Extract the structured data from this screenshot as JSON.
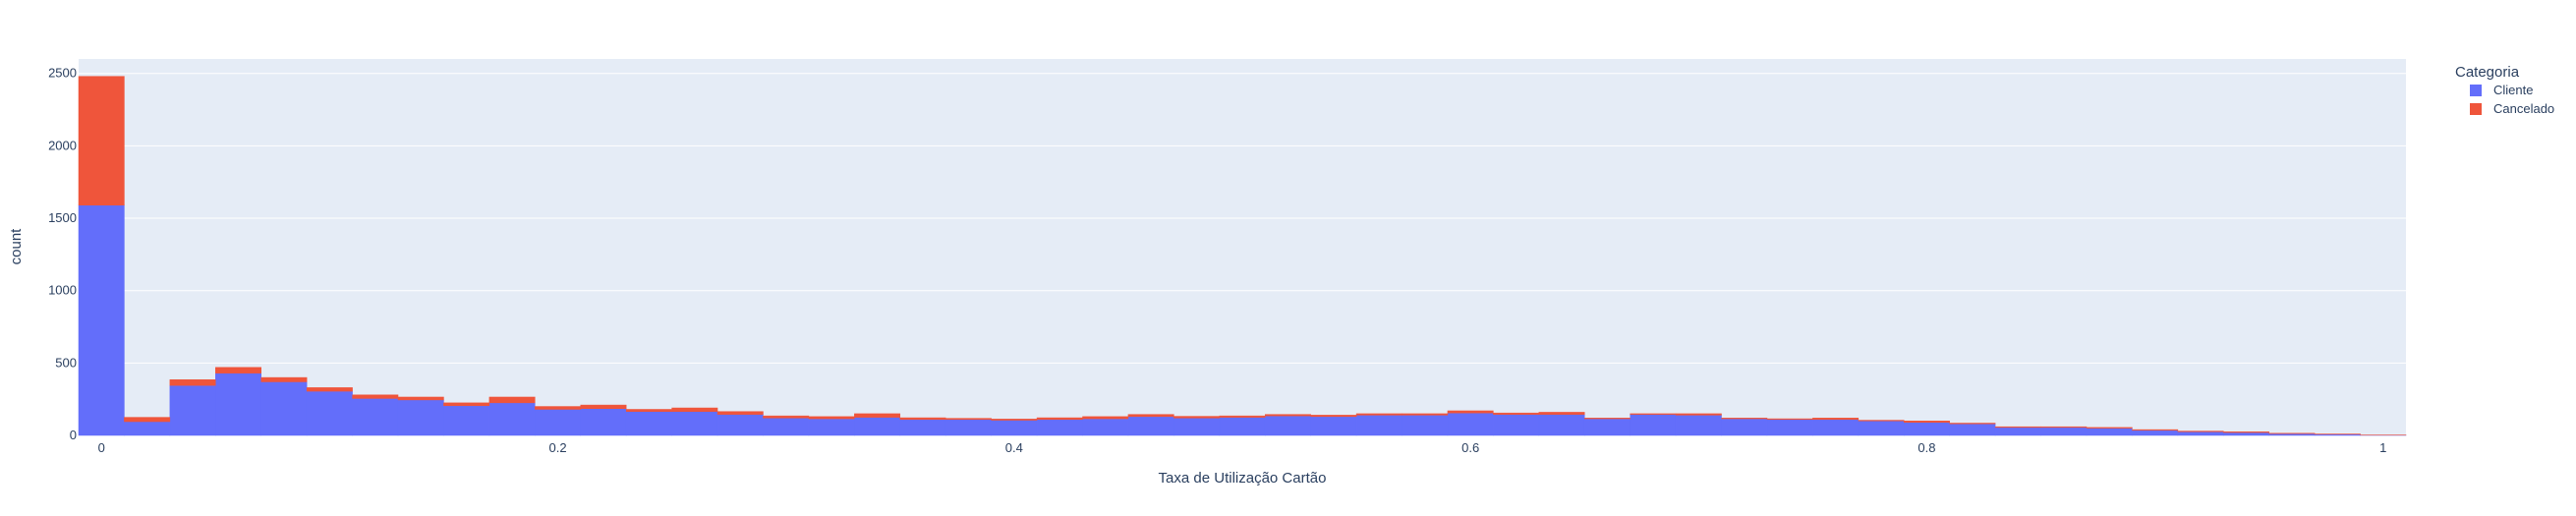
{
  "chart_data": {
    "type": "bar",
    "stacked": true,
    "xlabel": "Taxa de Utilização Cartão",
    "ylabel": "count",
    "xlim": [
      -0.01,
      1.01
    ],
    "ylim": [
      0,
      2600
    ],
    "x_ticks": [
      0,
      0.2,
      0.4,
      0.6,
      0.8,
      1
    ],
    "x_tick_labels": [
      "0",
      "0.2",
      "0.4",
      "0.6",
      "0.8",
      "1"
    ],
    "y_ticks": [
      0,
      500,
      1000,
      1500,
      2000,
      2500
    ],
    "y_tick_labels": [
      "0",
      "500",
      "1000",
      "1500",
      "2000",
      "2500"
    ],
    "bin_width": 0.02,
    "bin_starts": [
      -0.01,
      0.01,
      0.03,
      0.05,
      0.07,
      0.09,
      0.11,
      0.13,
      0.15,
      0.17,
      0.19,
      0.21,
      0.23,
      0.25,
      0.27,
      0.29,
      0.31,
      0.33,
      0.35,
      0.37,
      0.39,
      0.41,
      0.43,
      0.45,
      0.47,
      0.49,
      0.51,
      0.53,
      0.55,
      0.57,
      0.59,
      0.61,
      0.63,
      0.65,
      0.67,
      0.69,
      0.71,
      0.73,
      0.75,
      0.77,
      0.79,
      0.81,
      0.83,
      0.85,
      0.87,
      0.89,
      0.91,
      0.93,
      0.95,
      0.97,
      0.99
    ],
    "series": [
      {
        "name": "Cliente",
        "color": "#636efa",
        "values": [
          1590,
          95,
          345,
          430,
          370,
          305,
          255,
          245,
          205,
          225,
          180,
          185,
          165,
          165,
          145,
          120,
          115,
          125,
          110,
          110,
          105,
          110,
          115,
          130,
          120,
          125,
          135,
          130,
          140,
          140,
          155,
          145,
          145,
          115,
          145,
          140,
          115,
          110,
          110,
          100,
          90,
          80,
          55,
          55,
          50,
          35,
          25,
          20,
          12,
          8,
          2
        ]
      },
      {
        "name": "Cancelado",
        "color": "#ef553b",
        "values": [
          890,
          30,
          40,
          40,
          30,
          25,
          25,
          20,
          20,
          40,
          20,
          25,
          15,
          25,
          20,
          15,
          15,
          25,
          12,
          8,
          8,
          12,
          15,
          15,
          12,
          10,
          10,
          10,
          10,
          10,
          15,
          10,
          15,
          5,
          5,
          10,
          5,
          5,
          10,
          5,
          10,
          5,
          5,
          5,
          5,
          5,
          5,
          5,
          3,
          2,
          1
        ]
      }
    ],
    "legend": {
      "title": "Categoria",
      "position": "top-right"
    },
    "grid": true,
    "plot_bgcolor": "#e5ecf6",
    "gridcolor": "#ffffff"
  }
}
